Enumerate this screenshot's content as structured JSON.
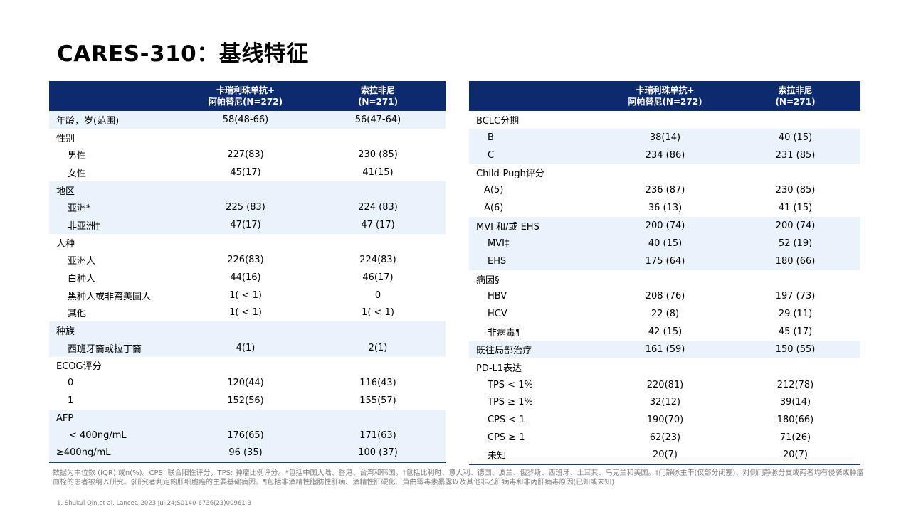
{
  "title": "CARES-310：基线特征",
  "left_table": {
    "header": {
      "col1_line1": "卡瑞利珠单抗+",
      "col1_line2": "阿帕替尼(N=272)",
      "col2_line1": "索拉非尼",
      "col2_line2": "(N=271)"
    },
    "rows": [
      {
        "label": "年龄，岁(范围)",
        "a": "58(48-66)",
        "b": "56(47-64)"
      },
      {
        "label": "性别",
        "a": "",
        "b": ""
      },
      {
        "label": "男性",
        "a": "227(83)",
        "b": "230 (85)"
      },
      {
        "label": "女性",
        "a": "45(17)",
        "b": "41(15)"
      },
      {
        "label": "地区",
        "a": "",
        "b": ""
      },
      {
        "label": "亚洲*",
        "a": "225 (83)",
        "b": "224 (83)"
      },
      {
        "label": "非亚洲†",
        "a": "47(17)",
        "b": "47 (17)"
      },
      {
        "label": "人种",
        "a": "",
        "b": ""
      },
      {
        "label": "亚洲人",
        "a": "226(83)",
        "b": "224(83)"
      },
      {
        "label": "白种人",
        "a": "44(16)",
        "b": "46(17)"
      },
      {
        "label": "黑种人或非裔美国人",
        "a": "1( < 1)",
        "b": "0"
      },
      {
        "label": "其他",
        "a": "1( < 1)",
        "b": "1( < 1)"
      },
      {
        "label": "种族",
        "a": "",
        "b": ""
      },
      {
        "label": "西班牙裔或拉丁裔",
        "a": "4(1)",
        "b": "2(1)"
      },
      {
        "label": "ECOG评分",
        "a": "",
        "b": ""
      },
      {
        "label": "0",
        "a": "120(44)",
        "b": "116(43)"
      },
      {
        "label": "1",
        "a": "152(56)",
        "b": "155(57)"
      },
      {
        "label": "AFP",
        "a": "",
        "b": ""
      },
      {
        "label": "< 400ng/mL",
        "a": "176(65)",
        "b": "171(63)"
      },
      {
        "label": "≥400ng/mL",
        "a": "96 (35)",
        "b": "100 (37)"
      }
    ]
  },
  "right_table": {
    "header": {
      "col1_line1": "卡瑞利珠单抗+",
      "col1_line2": "阿帕替尼(N=272)",
      "col2_line1": "索拉非尼",
      "col2_line2": "(N=271)"
    },
    "rows": [
      {
        "label": "BCLC分期",
        "a": "",
        "b": ""
      },
      {
        "label": "B",
        "a": "38(14)",
        "b": "40 (15)"
      },
      {
        "label": "C",
        "a": "234 (86)",
        "b": "231 (85)"
      },
      {
        "label": "Child-Pugh评分",
        "a": "",
        "b": ""
      },
      {
        "label": "A(5)",
        "a": "236 (87)",
        "b": "230 (85)"
      },
      {
        "label": "A(6)",
        "a": "36 (13)",
        "b": "41 (15)"
      },
      {
        "label": "MVI 和/或 EHS",
        "a": "200 (74)",
        "b": "200 (74)"
      },
      {
        "label": "MVI‡",
        "a": "40 (15)",
        "b": "52 (19)"
      },
      {
        "label": "EHS",
        "a": "175 (64)",
        "b": "180 (66)"
      },
      {
        "label": "病因§",
        "a": "",
        "b": ""
      },
      {
        "label": "HBV",
        "a": "208 (76)",
        "b": "197 (73)"
      },
      {
        "label": "HCV",
        "a": "22 (8)",
        "b": "29 (11)"
      },
      {
        "label": "非病毒¶",
        "a": "42 (15)",
        "b": "45 (17)"
      },
      {
        "label": "既往局部治疗",
        "a": "161 (59)",
        "b": "150 (55)"
      },
      {
        "label": "PD-L1表达",
        "a": "",
        "b": ""
      },
      {
        "label": "TPS < 1%",
        "a": "220(81)",
        "b": "212(78)"
      },
      {
        "label": "TPS ≥ 1%",
        "a": "32(12)",
        "b": "39(14)"
      },
      {
        "label": "CPS < 1",
        "a": "190(70)",
        "b": "180(66)"
      },
      {
        "label": "CPS ≥ 1",
        "a": "62(23)",
        "b": "71(26)"
      },
      {
        "label": "未知",
        "a": "20(7)",
        "b": "20(7)"
      }
    ]
  },
  "footnote": "数据为中位数 (IQR) 或n(%)。CPS: 联合阳性评分，TPS: 肿瘤比例评分。*包括中国大陆、香港、台湾和韩国。†包括比利时、意大利、德国、波兰、俄罗斯、西班牙、土耳其、乌克兰和美国。‡门静脉主干(仅部分闭塞)、对侧门静脉分支或两者均有侵袭或肿瘤血栓的患者被纳入研究。§研究者判定的肝细胞癌的主要基础病因。¶包括非酒精性脂肪性肝病、酒精性肝硬化、黄曲霉毒素暴露以及其他非乙肝病毒和非丙肝病毒原因(已知或未知)",
  "reference": "1.   Shukui Qin,et al. Lancet. 2023 Jul 24;S0140-6736(23)00961-3",
  "colors": {
    "header_bg": "#0e2a6e",
    "shade_bg": "#eaf3fb",
    "footnote": "#7f7f7f"
  }
}
